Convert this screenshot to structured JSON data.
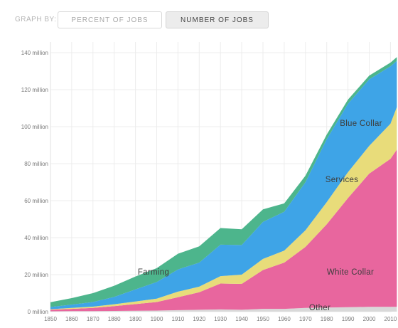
{
  "toolbar": {
    "graph_by_label": "GRAPH BY:",
    "percent_button_label": "PERCENT OF JOBS",
    "number_button_label": "NUMBER OF JOBS"
  },
  "chart_data": {
    "type": "area",
    "stacked": true,
    "x": [
      1850,
      1860,
      1870,
      1880,
      1890,
      1900,
      1910,
      1920,
      1930,
      1940,
      1950,
      1960,
      1970,
      1980,
      1990,
      2000,
      2010,
      2013
    ],
    "x_tick_labels": [
      "1850",
      "1860",
      "1870",
      "1880",
      "1890",
      "1900",
      "1910",
      "1920",
      "1930",
      "1940",
      "1950",
      "1960",
      "1970",
      "1980",
      "1990",
      "2000",
      "2010"
    ],
    "y_tick_values": [
      0,
      20,
      40,
      60,
      80,
      100,
      120,
      140
    ],
    "y_tick_labels": [
      "0 million",
      "20 million",
      "40 million",
      "60 million",
      "80 million",
      "100 million",
      "120 million",
      "140 million"
    ],
    "ylim": [
      0,
      145
    ],
    "grid": true,
    "series": [
      {
        "name": "Other",
        "color": "#d9d9d9",
        "values": [
          0.2,
          0.3,
          0.3,
          0.4,
          0.5,
          0.6,
          0.8,
          1.0,
          1.2,
          1.0,
          1.5,
          1.5,
          2.0,
          2.2,
          2.4,
          2.6,
          2.6,
          2.6
        ]
      },
      {
        "name": "White Collar",
        "color": "#e8669e",
        "values": [
          0.8,
          1.2,
          1.7,
          2.6,
          3.6,
          4.6,
          7.0,
          9.5,
          14.0,
          14.0,
          21.0,
          25.0,
          33.0,
          45.0,
          59.0,
          72.0,
          80.0,
          85.0
        ]
      },
      {
        "name": "Services",
        "color": "#e8dc7a",
        "values": [
          0.3,
          0.5,
          0.7,
          1.0,
          1.4,
          1.8,
          3.0,
          3.0,
          4.0,
          5.0,
          6.0,
          6.5,
          9.0,
          12.0,
          14.0,
          15.0,
          19.0,
          23.0
        ]
      },
      {
        "name": "Blue Collar",
        "color": "#3ea4e7",
        "values": [
          1.2,
          1.8,
          2.5,
          4.0,
          6.5,
          9.0,
          12.0,
          13.0,
          17.0,
          16.0,
          20.0,
          21.0,
          26.0,
          34.0,
          37.0,
          36.0,
          31.0,
          25.0
        ]
      },
      {
        "name": "Farming",
        "color": "#4db58c",
        "values": [
          2.6,
          3.5,
          4.8,
          6.0,
          7.0,
          7.5,
          8.5,
          8.8,
          9.0,
          8.5,
          6.8,
          4.5,
          3.5,
          2.5,
          2.2,
          2.0,
          2.0,
          2.0
        ]
      }
    ]
  }
}
